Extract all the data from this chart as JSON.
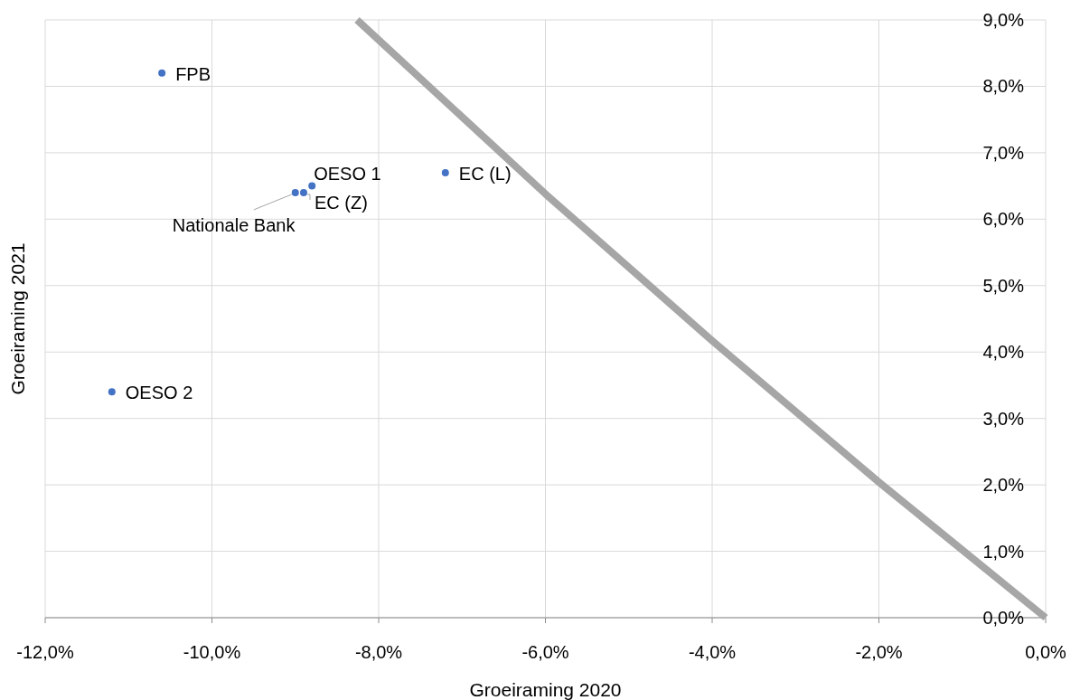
{
  "chart_data": {
    "type": "scatter",
    "xlabel": "Groeiraming 2020",
    "ylabel": "Groeiraming 2021",
    "xlim": [
      -12,
      0
    ],
    "ylim": [
      0,
      9
    ],
    "xticks": [
      {
        "value": -12,
        "label": "-12,0%"
      },
      {
        "value": -10,
        "label": "-10,0%"
      },
      {
        "value": -8,
        "label": "-8,0%"
      },
      {
        "value": -6,
        "label": "-6,0%"
      },
      {
        "value": -4,
        "label": "-4,0%"
      },
      {
        "value": -2,
        "label": "-2,0%"
      },
      {
        "value": 0,
        "label": "0,0%"
      }
    ],
    "yticks": [
      {
        "value": 0,
        "label": "0,0%"
      },
      {
        "value": 1,
        "label": "1,0%"
      },
      {
        "value": 2,
        "label": "2,0%"
      },
      {
        "value": 3,
        "label": "3,0%"
      },
      {
        "value": 4,
        "label": "4,0%"
      },
      {
        "value": 5,
        "label": "5,0%"
      },
      {
        "value": 6,
        "label": "6,0%"
      },
      {
        "value": 7,
        "label": "7,0%"
      },
      {
        "value": 8,
        "label": "8,0%"
      },
      {
        "value": 9,
        "label": "9,0%"
      }
    ],
    "grid": true,
    "marker": "circle",
    "series": [
      {
        "name": "FPB",
        "color": "#4472c4",
        "x": [
          -10.6
        ],
        "values": [
          8.2
        ]
      },
      {
        "name": "OESO 2",
        "color": "#4472c4",
        "x": [
          -11.2
        ],
        "values": [
          3.4
        ]
      },
      {
        "name": "OESO 1",
        "color": "#4472c4",
        "x": [
          -8.8
        ],
        "values": [
          6.5
        ]
      },
      {
        "name": "EC (Z)",
        "color": "#4472c4",
        "x": [
          -8.9
        ],
        "values": [
          6.4
        ]
      },
      {
        "name": "Nationale Bank",
        "color": "#4472c4",
        "x": [
          -9.0
        ],
        "values": [
          6.4
        ]
      },
      {
        "name": "EC (L)",
        "color": "#4472c4",
        "x": [
          -7.2
        ],
        "values": [
          6.7
        ]
      },
      {
        "type": "line",
        "color": "#a6a6a6",
        "marker": "none",
        "x": [
          -8.26,
          -6,
          -4,
          -2,
          0
        ],
        "values": [
          9.0,
          6.38,
          4.17,
          2.04,
          0
        ]
      }
    ]
  }
}
